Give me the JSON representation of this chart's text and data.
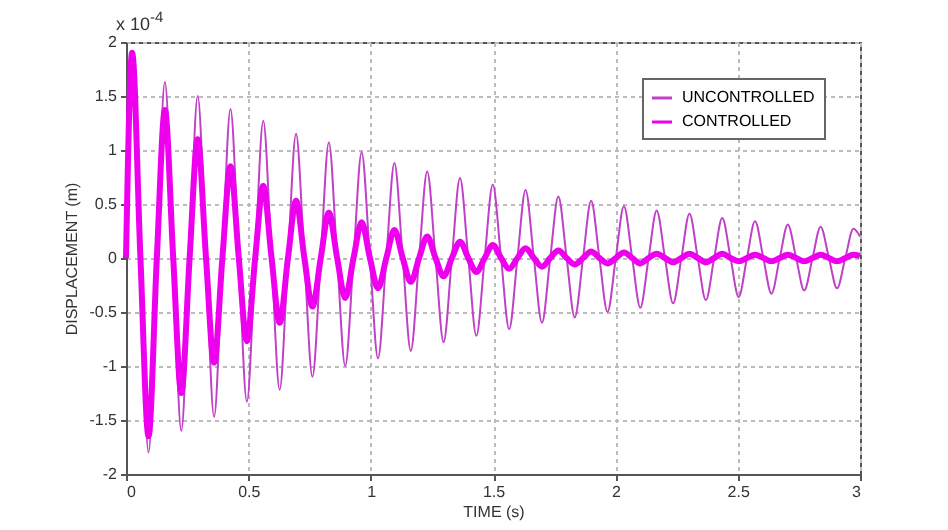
{
  "chart_data": {
    "type": "line",
    "xlabel": "TIME (s)",
    "ylabel": "DISPLACEMENT (m)",
    "annotations": [
      "x 10$^{-4}$"
    ],
    "x": [
      0,
      0.025,
      0.059,
      0.092,
      0.126,
      0.159,
      0.193,
      0.226,
      0.26,
      0.293,
      0.327,
      0.36,
      0.394,
      0.427,
      0.461,
      0.494,
      0.528,
      0.561,
      0.595,
      0.628,
      0.662,
      0.695,
      0.729,
      0.762,
      0.796,
      0.829,
      0.863,
      0.896,
      0.93,
      0.963,
      0.997,
      1.03,
      1.064,
      1.097,
      1.131,
      1.164,
      1.198,
      1.231,
      1.265,
      1.298,
      1.332,
      1.365,
      1.399,
      1.432,
      1.466,
      1.499,
      1.533,
      1.566,
      1.6,
      1.633,
      1.667,
      1.7,
      1.734,
      1.767,
      1.801,
      1.834,
      1.868,
      1.901,
      1.935,
      1.968,
      2.002,
      2.035,
      2.069,
      2.102,
      2.136,
      2.169,
      2.203,
      2.236,
      2.27,
      2.303,
      2.337,
      2.37,
      2.404,
      2.437,
      2.471,
      2.504,
      2.538,
      2.571,
      2.605,
      2.638,
      2.672,
      2.705,
      2.739,
      2.772,
      2.806,
      2.839,
      2.873,
      2.906,
      2.94,
      2.973,
      3
    ],
    "series": [
      {
        "name": "UNCONTROLLED",
        "color": "#c040c8",
        "values": [
          0,
          1.9,
          0,
          -1.8,
          0,
          1.63,
          0,
          -1.6,
          0,
          1.5,
          0,
          -1.47,
          0,
          1.38,
          0,
          -1.33,
          0,
          1.27,
          0,
          -1.22,
          0,
          1.15,
          0,
          -1.1,
          0,
          1.07,
          0,
          -1,
          0,
          0.98,
          0,
          -0.93,
          0,
          0.88,
          0,
          -0.86,
          0,
          0.8,
          0,
          -0.78,
          0,
          0.74,
          0,
          -0.72,
          0,
          0.68,
          0,
          -0.66,
          0,
          0.63,
          0,
          -0.6,
          0,
          0.57,
          0,
          -0.55,
          0,
          0.53,
          0,
          -0.5,
          0,
          0.48,
          0,
          -0.46,
          0,
          0.44,
          0,
          -0.42,
          0,
          0.41,
          0,
          -0.39,
          0,
          0.37,
          0,
          -0.36,
          0,
          0.34,
          0,
          -0.33,
          0,
          0.31,
          0,
          -0.3,
          0,
          0.29,
          0,
          -0.28,
          0,
          0.27,
          0.2
        ]
      },
      {
        "name": "CONTROLLED",
        "color": "#ee00ee",
        "values": [
          0,
          1.9,
          0,
          -1.65,
          0,
          1.37,
          0,
          -1.25,
          0,
          1.1,
          0,
          -0.97,
          0,
          0.85,
          0,
          -0.77,
          0,
          0.67,
          0,
          -0.6,
          0,
          0.53,
          0,
          -0.45,
          0,
          0.42,
          0,
          -0.37,
          0,
          0.33,
          0,
          -0.28,
          0,
          0.26,
          0,
          -0.22,
          0,
          0.2,
          0,
          -0.17,
          0,
          0.15,
          0,
          -0.13,
          0,
          0.12,
          0,
          -0.1,
          0,
          0.09,
          0,
          -0.08,
          0,
          0.07,
          0,
          -0.06,
          0,
          0.06,
          0,
          -0.05,
          0,
          0.05,
          0,
          -0.05,
          0,
          0.04,
          0,
          -0.04,
          0,
          0.04,
          0,
          -0.04,
          0,
          0.04,
          0,
          -0.03,
          0,
          0.03,
          0,
          -0.03,
          0,
          0.03,
          0,
          -0.03,
          0,
          0.03,
          0,
          -0.03,
          0,
          0.03,
          0.02
        ]
      }
    ],
    "xlim": [
      0,
      3
    ],
    "xticks": [
      0,
      0.5,
      1,
      1.5,
      2,
      2.5,
      3
    ],
    "ylim": [
      -2,
      2
    ],
    "yticks": [
      -2,
      -1.5,
      -1,
      -0.5,
      0,
      0.5,
      1,
      1.5,
      2
    ],
    "grid": true,
    "legend": "top right",
    "line_style": "solid"
  }
}
